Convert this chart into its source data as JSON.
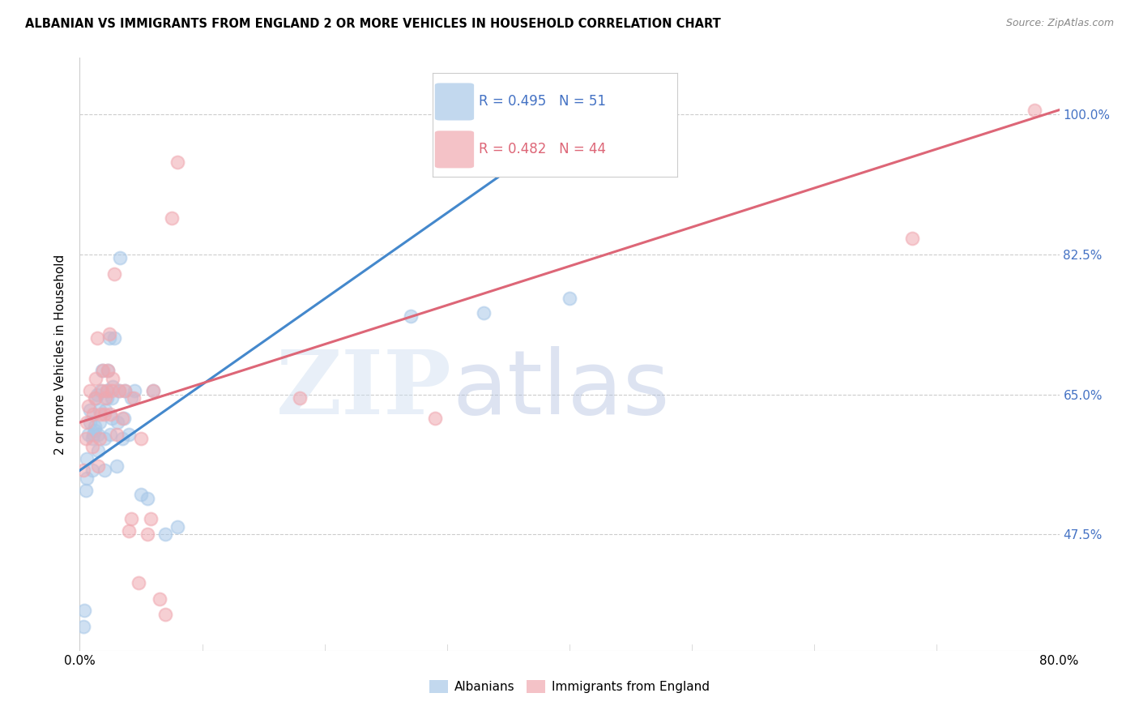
{
  "title": "ALBANIAN VS IMMIGRANTS FROM ENGLAND 2 OR MORE VEHICLES IN HOUSEHOLD CORRELATION CHART",
  "source": "Source: ZipAtlas.com",
  "ylabel": "2 or more Vehicles in Household",
  "xlim": [
    0.0,
    0.8
  ],
  "ylim": [
    0.33,
    1.07
  ],
  "ytick_positions": [
    0.475,
    0.65,
    0.825,
    1.0
  ],
  "ytick_labels": [
    "47.5%",
    "65.0%",
    "82.5%",
    "100.0%"
  ],
  "blue_R": 0.495,
  "blue_N": 51,
  "pink_R": 0.482,
  "pink_N": 44,
  "blue_color": "#a8c8e8",
  "pink_color": "#f0a8b0",
  "blue_line_color": "#4488cc",
  "pink_line_color": "#dd6677",
  "blue_line_x": [
    0.0,
    0.42
  ],
  "blue_line_y": [
    0.555,
    1.005
  ],
  "pink_line_x": [
    0.0,
    0.8
  ],
  "pink_line_y": [
    0.615,
    1.005
  ],
  "blue_scatter_x": [
    0.003,
    0.004,
    0.005,
    0.006,
    0.006,
    0.007,
    0.008,
    0.008,
    0.01,
    0.01,
    0.011,
    0.012,
    0.012,
    0.013,
    0.014,
    0.015,
    0.015,
    0.016,
    0.016,
    0.017,
    0.018,
    0.02,
    0.02,
    0.021,
    0.022,
    0.022,
    0.023,
    0.024,
    0.025,
    0.026,
    0.026,
    0.027,
    0.028,
    0.03,
    0.031,
    0.032,
    0.033,
    0.035,
    0.036,
    0.037,
    0.04,
    0.042,
    0.045,
    0.05,
    0.055,
    0.06,
    0.07,
    0.08,
    0.27,
    0.33,
    0.4
  ],
  "blue_scatter_y": [
    0.36,
    0.38,
    0.53,
    0.545,
    0.57,
    0.6,
    0.615,
    0.63,
    0.555,
    0.595,
    0.6,
    0.605,
    0.61,
    0.645,
    0.65,
    0.58,
    0.6,
    0.615,
    0.63,
    0.655,
    0.68,
    0.555,
    0.595,
    0.63,
    0.645,
    0.655,
    0.68,
    0.72,
    0.6,
    0.62,
    0.645,
    0.66,
    0.72,
    0.56,
    0.615,
    0.655,
    0.82,
    0.595,
    0.62,
    0.655,
    0.6,
    0.645,
    0.655,
    0.525,
    0.52,
    0.655,
    0.475,
    0.485,
    0.748,
    0.752,
    0.77
  ],
  "pink_scatter_x": [
    0.003,
    0.005,
    0.006,
    0.007,
    0.008,
    0.01,
    0.011,
    0.012,
    0.013,
    0.014,
    0.015,
    0.016,
    0.017,
    0.018,
    0.019,
    0.02,
    0.021,
    0.022,
    0.023,
    0.024,
    0.025,
    0.026,
    0.027,
    0.028,
    0.03,
    0.032,
    0.035,
    0.037,
    0.04,
    0.042,
    0.044,
    0.048,
    0.05,
    0.055,
    0.058,
    0.06,
    0.065,
    0.07,
    0.075,
    0.08,
    0.18,
    0.29,
    0.68,
    0.78
  ],
  "pink_scatter_y": [
    0.555,
    0.595,
    0.615,
    0.635,
    0.655,
    0.585,
    0.625,
    0.645,
    0.67,
    0.72,
    0.56,
    0.595,
    0.625,
    0.655,
    0.68,
    0.625,
    0.645,
    0.655,
    0.68,
    0.725,
    0.625,
    0.655,
    0.67,
    0.8,
    0.6,
    0.655,
    0.62,
    0.655,
    0.48,
    0.495,
    0.645,
    0.415,
    0.595,
    0.475,
    0.495,
    0.655,
    0.395,
    0.375,
    0.87,
    0.94,
    0.645,
    0.62,
    0.845,
    1.005
  ],
  "grid_color": "#cccccc",
  "background_color": "#ffffff"
}
